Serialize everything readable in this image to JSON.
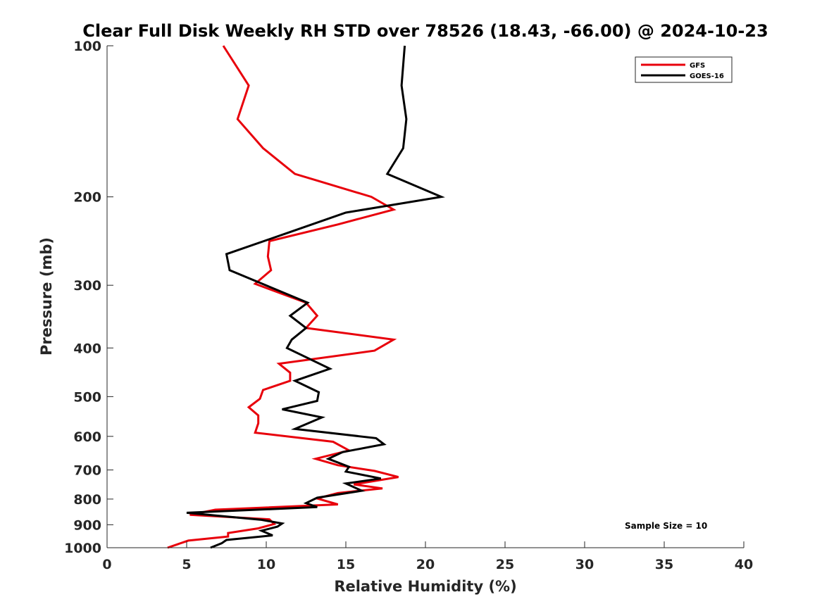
{
  "chart_data": {
    "type": "line",
    "title": "Clear Full Disk Weekly RH STD over 78526 (18.43, -66.00) @ 2024-10-23",
    "xlabel": "Relative Humidity (%)",
    "ylabel": "Pressure (mb)",
    "xlim": [
      0,
      40
    ],
    "ylim": [
      100,
      1000
    ],
    "y_scale": "log",
    "y_direction": "reversed",
    "x_ticks": [
      "0",
      "5",
      "10",
      "15",
      "20",
      "25",
      "30",
      "35",
      "40"
    ],
    "y_ticks": [
      "100",
      "200",
      "300",
      "400",
      "500",
      "600",
      "700",
      "800",
      "900",
      "1000"
    ],
    "grid": false,
    "legend_position": "top-right",
    "annotation": "Sample Size = 10",
    "series": [
      {
        "name": "GFS",
        "color": "#e8000b",
        "points": [
          [
            7.3,
            100
          ],
          [
            8.9,
            120
          ],
          [
            8.2,
            140
          ],
          [
            9.8,
            160
          ],
          [
            11.8,
            180
          ],
          [
            16.6,
            200
          ],
          [
            18.0,
            212
          ],
          [
            14.5,
            227
          ],
          [
            10.2,
            245
          ],
          [
            10.1,
            263
          ],
          [
            10.3,
            280
          ],
          [
            9.3,
            298
          ],
          [
            12.5,
            325
          ],
          [
            13.2,
            345
          ],
          [
            12.5,
            365
          ],
          [
            18.0,
            385
          ],
          [
            16.8,
            405
          ],
          [
            10.8,
            430
          ],
          [
            11.5,
            448
          ],
          [
            11.5,
            465
          ],
          [
            9.8,
            485
          ],
          [
            9.6,
            505
          ],
          [
            8.9,
            525
          ],
          [
            9.5,
            545
          ],
          [
            9.5,
            565
          ],
          [
            9.3,
            590
          ],
          [
            14.2,
            615
          ],
          [
            15.2,
            640
          ],
          [
            13.1,
            665
          ],
          [
            14.5,
            685
          ],
          [
            16.8,
            703
          ],
          [
            18.3,
            723
          ],
          [
            15.5,
            748
          ],
          [
            17.3,
            762
          ],
          [
            14.5,
            778
          ],
          [
            13.2,
            798
          ],
          [
            14.5,
            820
          ],
          [
            6.8,
            840
          ],
          [
            5.2,
            860
          ],
          [
            10.2,
            878
          ],
          [
            10.5,
            897
          ],
          [
            9.5,
            915
          ],
          [
            7.6,
            935
          ],
          [
            7.6,
            950
          ],
          [
            5.1,
            968
          ],
          [
            3.8,
            1000
          ]
        ]
      },
      {
        "name": "GOES-16",
        "color": "#000000",
        "points": [
          [
            18.7,
            100
          ],
          [
            18.5,
            120
          ],
          [
            18.8,
            140
          ],
          [
            18.6,
            160
          ],
          [
            17.6,
            180
          ],
          [
            21.0,
            200
          ],
          [
            15.0,
            215
          ],
          [
            11.5,
            235
          ],
          [
            7.5,
            260
          ],
          [
            7.7,
            280
          ],
          [
            12.6,
            325
          ],
          [
            11.5,
            345
          ],
          [
            12.5,
            365
          ],
          [
            11.6,
            385
          ],
          [
            11.3,
            400
          ],
          [
            14.0,
            440
          ],
          [
            11.8,
            465
          ],
          [
            13.3,
            490
          ],
          [
            13.2,
            510
          ],
          [
            11.0,
            530
          ],
          [
            13.5,
            550
          ],
          [
            11.8,
            580
          ],
          [
            16.9,
            605
          ],
          [
            17.4,
            622
          ],
          [
            14.8,
            645
          ],
          [
            13.9,
            665
          ],
          [
            15.2,
            690
          ],
          [
            15.0,
            705
          ],
          [
            17.2,
            728
          ],
          [
            15.0,
            745
          ],
          [
            16.0,
            770
          ],
          [
            13.2,
            795
          ],
          [
            12.5,
            815
          ],
          [
            13.2,
            830
          ],
          [
            5.0,
            852
          ],
          [
            9.7,
            880
          ],
          [
            11.0,
            895
          ],
          [
            10.7,
            908
          ],
          [
            9.7,
            925
          ],
          [
            10.4,
            945
          ],
          [
            7.5,
            965
          ],
          [
            7.2,
            980
          ],
          [
            6.5,
            1000
          ]
        ]
      }
    ]
  }
}
